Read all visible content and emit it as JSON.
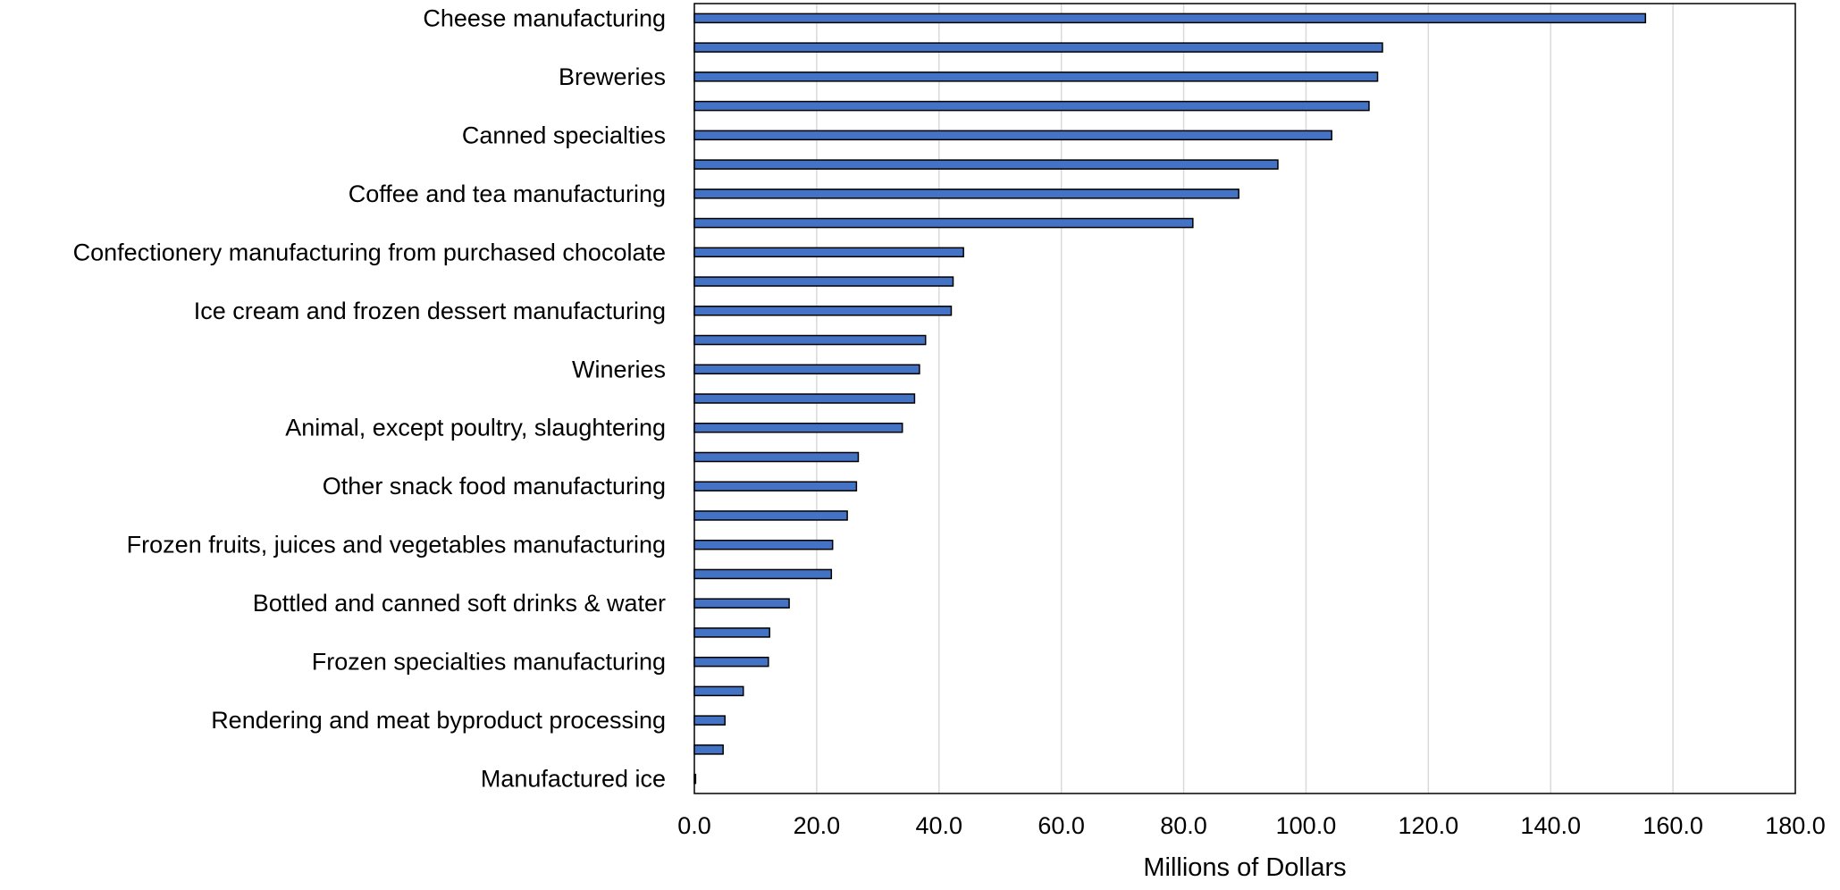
{
  "chart_data": {
    "type": "bar",
    "orientation": "horizontal",
    "xlabel": "Millions of Dollars",
    "xlim": [
      0,
      180
    ],
    "xticks": [
      "0.0",
      "20.0",
      "40.0",
      "60.0",
      "80.0",
      "100.0",
      "120.0",
      "140.0",
      "160.0",
      "180.0"
    ],
    "grid": true,
    "bar_color": "#4472C4",
    "bars": [
      {
        "label": "Cheese manufacturing",
        "value": 155.5
      },
      {
        "label": "",
        "value": 112.5
      },
      {
        "label": "Breweries",
        "value": 111.7
      },
      {
        "label": "",
        "value": 110.3
      },
      {
        "label": "Canned specialties",
        "value": 104.2
      },
      {
        "label": "",
        "value": 95.4
      },
      {
        "label": "Coffee and tea manufacturing",
        "value": 89.0
      },
      {
        "label": "",
        "value": 81.5
      },
      {
        "label": "Confectionery manufacturing from purchased chocolate",
        "value": 44.0
      },
      {
        "label": "",
        "value": 42.3
      },
      {
        "label": "Ice cream and frozen dessert manufacturing",
        "value": 42.0
      },
      {
        "label": "",
        "value": 37.8
      },
      {
        "label": "Wineries",
        "value": 36.8
      },
      {
        "label": "",
        "value": 36.0
      },
      {
        "label": "Animal, except poultry, slaughtering",
        "value": 34.0
      },
      {
        "label": "",
        "value": 26.8
      },
      {
        "label": "Other snack food manufacturing",
        "value": 26.5
      },
      {
        "label": "",
        "value": 25.0
      },
      {
        "label": "Frozen fruits, juices and vegetables manufacturing",
        "value": 22.6
      },
      {
        "label": "",
        "value": 22.4
      },
      {
        "label": "Bottled and canned soft drinks & water",
        "value": 15.5
      },
      {
        "label": "",
        "value": 12.3
      },
      {
        "label": "Frozen specialties manufacturing",
        "value": 12.1
      },
      {
        "label": "",
        "value": 8.0
      },
      {
        "label": "Rendering and meat byproduct processing",
        "value": 5.0
      },
      {
        "label": "",
        "value": 4.7
      },
      {
        "label": "Manufactured ice",
        "value": 0.2
      }
    ]
  }
}
